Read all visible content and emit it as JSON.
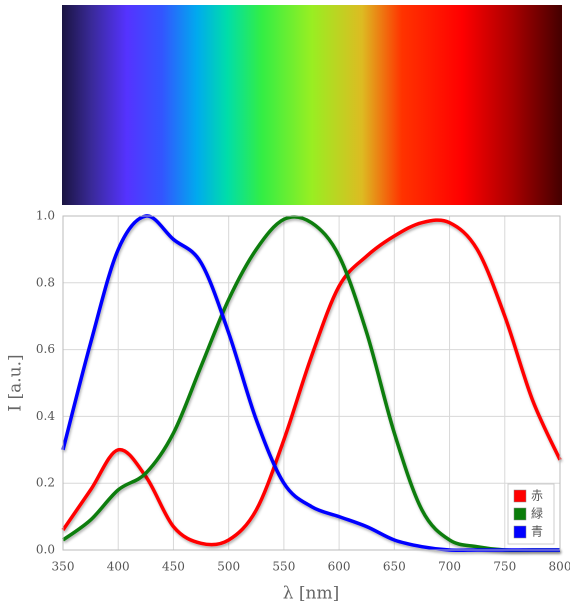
{
  "chart_data": {
    "type": "line",
    "xlabel": "λ [nm]",
    "ylabel": "I [a.u.]",
    "x": [
      350,
      375,
      400,
      425,
      450,
      475,
      500,
      525,
      550,
      575,
      600,
      625,
      650,
      675,
      700,
      725,
      750,
      775,
      800
    ],
    "series": [
      {
        "name": "赤",
        "color": "#ff0000",
        "values": [
          0.06,
          0.18,
          0.3,
          0.22,
          0.07,
          0.02,
          0.03,
          0.12,
          0.33,
          0.58,
          0.79,
          0.88,
          0.94,
          0.98,
          0.98,
          0.9,
          0.7,
          0.45,
          0.27
        ]
      },
      {
        "name": "緑",
        "color": "#0a7d0a",
        "values": [
          0.03,
          0.09,
          0.18,
          0.23,
          0.35,
          0.55,
          0.75,
          0.9,
          0.99,
          0.98,
          0.88,
          0.65,
          0.35,
          0.12,
          0.03,
          0.01,
          0,
          0,
          0
        ]
      },
      {
        "name": "青",
        "color": "#0000ff",
        "values": [
          0.3,
          0.62,
          0.9,
          1.0,
          0.93,
          0.86,
          0.65,
          0.39,
          0.2,
          0.13,
          0.1,
          0.07,
          0.03,
          0.01,
          0,
          0,
          0,
          0,
          0
        ]
      }
    ],
    "xlim": [
      350,
      800
    ],
    "xticks": [
      350,
      400,
      450,
      500,
      550,
      600,
      650,
      700,
      750,
      800
    ],
    "ylim": [
      0,
      1
    ],
    "yticks": [
      {
        "value": 0,
        "label": "0.0"
      },
      0.2,
      0.4,
      0.6,
      0.8,
      {
        "value": 1,
        "label": "1.0"
      }
    ],
    "grid": true,
    "legend": "lower right"
  }
}
